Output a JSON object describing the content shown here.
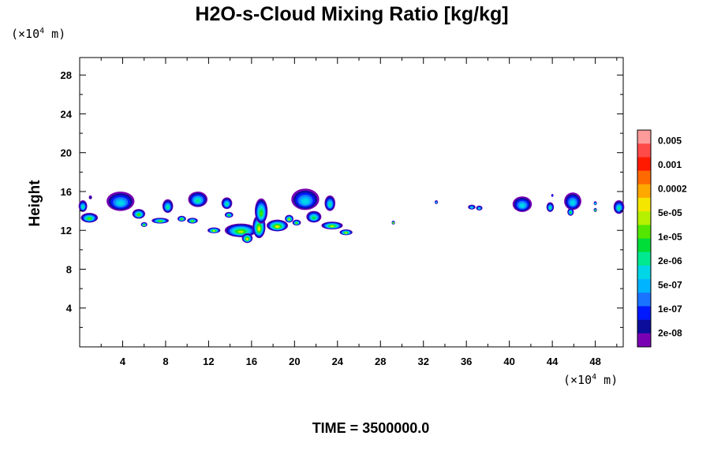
{
  "chart_data": {
    "type": "heatmap",
    "title": "H2O-s-Cloud Mixing Ratio [kg/kg]",
    "ylabel": "Height",
    "x_unit_prefix": "(×10",
    "x_unit_exp": "4",
    "x_unit_suffix": " m)",
    "y_unit_prefix": "(×10",
    "y_unit_exp": "4",
    "y_unit_suffix": " m)",
    "xlim": [
      0,
      50.6
    ],
    "ylim": [
      0,
      29.8
    ],
    "x_ticks": [
      "4",
      "8",
      "12",
      "16",
      "20",
      "24",
      "28",
      "32",
      "36",
      "40",
      "44",
      "48"
    ],
    "y_ticks": [
      "4",
      "8",
      "12",
      "16",
      "20",
      "24",
      "28"
    ],
    "footer": "TIME = 3500000.0",
    "colorbar": {
      "labels": [
        "0.005",
        "0.001",
        "0.0002",
        "5e-05",
        "1e-05",
        "2e-06",
        "5e-07",
        "1e-07",
        "2e-08"
      ],
      "colors_top_to_bottom": [
        "#ff9b9b",
        "#ff4a4a",
        "#ff1a00",
        "#ff6a00",
        "#ffa800",
        "#f5e600",
        "#b4f000",
        "#52e600",
        "#00dc38",
        "#00e890",
        "#00d6e6",
        "#00b4ff",
        "#1a73ff",
        "#0019ff",
        "#0d0d9c",
        "#7a00b4"
      ]
    },
    "cloud_blobs": [
      {
        "x": 0.3,
        "y": 14.5,
        "rx": 0.4,
        "ry": 0.6,
        "level": 6
      },
      {
        "x": 1.0,
        "y": 15.4,
        "rx": 0.15,
        "ry": 0.2,
        "level": 1
      },
      {
        "x": 0.9,
        "y": 13.3,
        "rx": 0.8,
        "ry": 0.5,
        "level": 8
      },
      {
        "x": 3.8,
        "y": 15.0,
        "rx": 1.3,
        "ry": 1.0,
        "level": 5
      },
      {
        "x": 5.5,
        "y": 13.7,
        "rx": 0.6,
        "ry": 0.5,
        "level": 8
      },
      {
        "x": 6.0,
        "y": 12.6,
        "rx": 0.3,
        "ry": 0.25,
        "level": 8
      },
      {
        "x": 8.2,
        "y": 14.5,
        "rx": 0.5,
        "ry": 0.7,
        "level": 6
      },
      {
        "x": 7.5,
        "y": 13.0,
        "rx": 0.8,
        "ry": 0.3,
        "level": 8
      },
      {
        "x": 9.5,
        "y": 13.2,
        "rx": 0.4,
        "ry": 0.3,
        "level": 8
      },
      {
        "x": 11.0,
        "y": 15.2,
        "rx": 0.9,
        "ry": 0.8,
        "level": 6
      },
      {
        "x": 10.5,
        "y": 13.0,
        "rx": 0.5,
        "ry": 0.3,
        "level": 8
      },
      {
        "x": 13.7,
        "y": 14.8,
        "rx": 0.5,
        "ry": 0.6,
        "level": 6
      },
      {
        "x": 13.9,
        "y": 13.6,
        "rx": 0.4,
        "ry": 0.3,
        "level": 7
      },
      {
        "x": 15.0,
        "y": 12.0,
        "rx": 1.5,
        "ry": 0.7,
        "level": 9
      },
      {
        "x": 15.6,
        "y": 11.2,
        "rx": 0.5,
        "ry": 0.5,
        "level": 10
      },
      {
        "x": 16.7,
        "y": 12.4,
        "rx": 0.6,
        "ry": 1.2,
        "level": 10
      },
      {
        "x": 16.9,
        "y": 14.0,
        "rx": 0.6,
        "ry": 1.3,
        "level": 8
      },
      {
        "x": 18.4,
        "y": 12.5,
        "rx": 1.0,
        "ry": 0.6,
        "level": 10
      },
      {
        "x": 19.5,
        "y": 13.2,
        "rx": 0.4,
        "ry": 0.4,
        "level": 9
      },
      {
        "x": 20.2,
        "y": 12.8,
        "rx": 0.4,
        "ry": 0.3,
        "level": 8
      },
      {
        "x": 12.5,
        "y": 12.0,
        "rx": 0.6,
        "ry": 0.3,
        "level": 9
      },
      {
        "x": 21.0,
        "y": 15.2,
        "rx": 1.3,
        "ry": 1.1,
        "level": 5
      },
      {
        "x": 21.8,
        "y": 13.4,
        "rx": 0.7,
        "ry": 0.6,
        "level": 7
      },
      {
        "x": 23.3,
        "y": 14.8,
        "rx": 0.5,
        "ry": 0.8,
        "level": 6
      },
      {
        "x": 23.5,
        "y": 12.5,
        "rx": 1.0,
        "ry": 0.4,
        "level": 9
      },
      {
        "x": 24.8,
        "y": 11.8,
        "rx": 0.6,
        "ry": 0.3,
        "level": 9
      },
      {
        "x": 29.2,
        "y": 12.8,
        "rx": 0.15,
        "ry": 0.2,
        "level": 8
      },
      {
        "x": 33.2,
        "y": 14.9,
        "rx": 0.15,
        "ry": 0.2,
        "level": 4
      },
      {
        "x": 36.5,
        "y": 14.4,
        "rx": 0.35,
        "ry": 0.25,
        "level": 5
      },
      {
        "x": 37.2,
        "y": 14.3,
        "rx": 0.3,
        "ry": 0.25,
        "level": 5
      },
      {
        "x": 41.2,
        "y": 14.7,
        "rx": 0.9,
        "ry": 0.8,
        "level": 5
      },
      {
        "x": 43.8,
        "y": 14.4,
        "rx": 0.35,
        "ry": 0.5,
        "level": 6
      },
      {
        "x": 44.0,
        "y": 15.6,
        "rx": 0.1,
        "ry": 0.15,
        "level": 2
      },
      {
        "x": 45.9,
        "y": 15.0,
        "rx": 0.8,
        "ry": 0.9,
        "level": 5
      },
      {
        "x": 45.7,
        "y": 13.9,
        "rx": 0.3,
        "ry": 0.4,
        "level": 7
      },
      {
        "x": 48.0,
        "y": 14.8,
        "rx": 0.15,
        "ry": 0.2,
        "level": 5
      },
      {
        "x": 48.0,
        "y": 14.1,
        "rx": 0.15,
        "ry": 0.2,
        "level": 7
      },
      {
        "x": 50.2,
        "y": 14.4,
        "rx": 0.5,
        "ry": 0.7,
        "level": 6
      }
    ]
  }
}
